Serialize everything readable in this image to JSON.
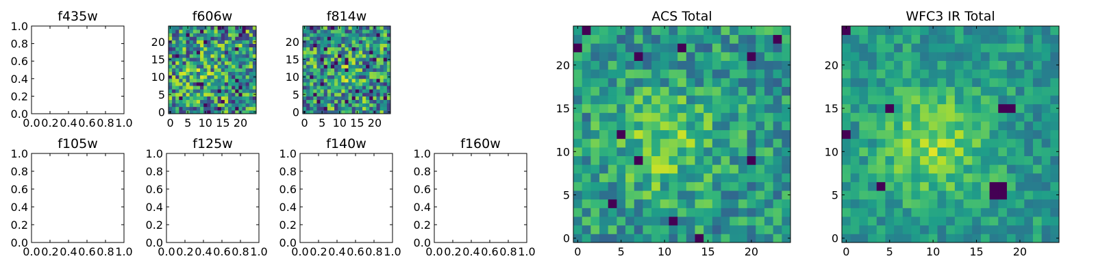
{
  "chart_data": [
    {
      "type": "heatmap",
      "title": "f435w",
      "xlim": [
        0,
        1
      ],
      "ylim": [
        0,
        1
      ],
      "xticks": [
        "0.0",
        "0.2",
        "0.4",
        "0.6",
        "0.8",
        "1.0"
      ],
      "yticks": [
        "0.0",
        "0.2",
        "0.4",
        "0.6",
        "0.8",
        "1.0"
      ],
      "empty": true
    },
    {
      "type": "heatmap",
      "title": "f606w",
      "size": 25,
      "xlim": [
        -0.5,
        24.5
      ],
      "ylim": [
        -0.5,
        24.5
      ],
      "xticks": [
        "0",
        "5",
        "10",
        "15",
        "20"
      ],
      "yticks": [
        "0",
        "5",
        "10",
        "15",
        "20"
      ],
      "noise": 0.8,
      "seed": 11
    },
    {
      "type": "heatmap",
      "title": "f814w",
      "size": 25,
      "xlim": [
        -0.5,
        24.5
      ],
      "ylim": [
        -0.5,
        24.5
      ],
      "xticks": [
        "0",
        "5",
        "10",
        "15",
        "20"
      ],
      "yticks": [
        "0",
        "5",
        "10",
        "15",
        "20"
      ],
      "noise": 0.75,
      "seed": 23
    },
    {
      "type": "heatmap",
      "title": "f105w",
      "xlim": [
        0,
        1
      ],
      "ylim": [
        0,
        1
      ],
      "xticks": [
        "0.0",
        "0.2",
        "0.4",
        "0.6",
        "0.8",
        "1.0"
      ],
      "yticks": [
        "0.0",
        "0.2",
        "0.4",
        "0.6",
        "0.8",
        "1.0"
      ],
      "empty": true
    },
    {
      "type": "heatmap",
      "title": "f125w",
      "xlim": [
        0,
        1
      ],
      "ylim": [
        0,
        1
      ],
      "xticks": [
        "0.0",
        "0.2",
        "0.4",
        "0.6",
        "0.8",
        "1.0"
      ],
      "yticks": [
        "0.0",
        "0.2",
        "0.4",
        "0.6",
        "0.8",
        "1.0"
      ],
      "empty": true
    },
    {
      "type": "heatmap",
      "title": "f140w",
      "xlim": [
        0,
        1
      ],
      "ylim": [
        0,
        1
      ],
      "xticks": [
        "0.0",
        "0.2",
        "0.4",
        "0.6",
        "0.8",
        "1.0"
      ],
      "yticks": [
        "0.0",
        "0.2",
        "0.4",
        "0.6",
        "0.8",
        "1.0"
      ],
      "empty": true
    },
    {
      "type": "heatmap",
      "title": "f160w",
      "xlim": [
        0,
        1
      ],
      "ylim": [
        0,
        1
      ],
      "xticks": [
        "0.0",
        "0.2",
        "0.4",
        "0.6",
        "0.8",
        "1.0"
      ],
      "yticks": [
        "0.0",
        "0.2",
        "0.4",
        "0.6",
        "0.8",
        "1.0"
      ],
      "empty": true
    },
    {
      "type": "heatmap",
      "title": "ACS Total",
      "size": 25,
      "xlim": [
        -0.5,
        24.5
      ],
      "ylim": [
        -0.5,
        24.5
      ],
      "xticks": [
        "0",
        "5",
        "10",
        "15",
        "20"
      ],
      "yticks": [
        "0",
        "5",
        "10",
        "15",
        "20"
      ],
      "noise": 0.45,
      "seed": 37,
      "dark_cells": [
        [
          1,
          24
        ],
        [
          0,
          22
        ],
        [
          7,
          21
        ],
        [
          12,
          22
        ],
        [
          20,
          21
        ],
        [
          23,
          23
        ],
        [
          5,
          12
        ],
        [
          7,
          9
        ],
        [
          20,
          9
        ],
        [
          4,
          4
        ],
        [
          11,
          2
        ],
        [
          14,
          0
        ]
      ]
    },
    {
      "type": "heatmap",
      "title": "WFC3 IR Total",
      "size": 25,
      "xlim": [
        -0.5,
        24.5
      ],
      "ylim": [
        -0.5,
        24.5
      ],
      "xticks": [
        "0",
        "5",
        "10",
        "15",
        "20"
      ],
      "yticks": [
        "0",
        "5",
        "10",
        "15",
        "20"
      ],
      "noise": 0.32,
      "seed": 53,
      "dark_cells": [
        [
          0,
          24
        ],
        [
          5,
          15
        ],
        [
          18,
          15
        ],
        [
          19,
          15
        ],
        [
          4,
          6
        ],
        [
          17,
          6
        ],
        [
          18,
          6
        ],
        [
          17,
          5
        ],
        [
          18,
          5
        ],
        [
          0,
          12
        ]
      ]
    }
  ]
}
